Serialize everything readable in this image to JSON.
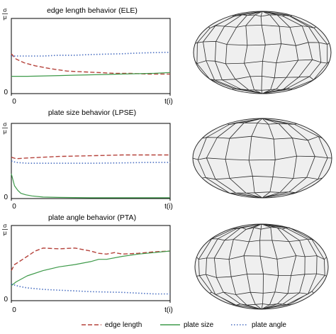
{
  "colors": {
    "edge_length": "#b5423b",
    "plate_size": "#3e9a4a",
    "plate_angle": "#4a6fc1",
    "axis": "#000000",
    "mesh_fill": "#efefef",
    "mesh_line": "#2a2a2a"
  },
  "legend": {
    "edge_length": "edge length",
    "plate_size": "plate size",
    "plate_angle": "plate angle"
  },
  "chart_data": [
    {
      "type": "line",
      "title": "edge length behavior (ELE)",
      "ylabel_num": "σ",
      "ylabel_den": "μ",
      "xlabel": "t(i)",
      "x_tick_start": "0",
      "y_tick_start": "0",
      "xlim": [
        0,
        1
      ],
      "ylim": [
        0,
        1
      ],
      "series": [
        {
          "name": "edge length",
          "x": [
            0,
            0.03,
            0.08,
            0.15,
            0.25,
            0.35,
            0.45,
            0.55,
            0.65,
            0.75,
            0.85,
            1.0
          ],
          "y": [
            0.53,
            0.46,
            0.41,
            0.37,
            0.33,
            0.3,
            0.29,
            0.28,
            0.27,
            0.27,
            0.26,
            0.26
          ]
        },
        {
          "name": "plate size",
          "x": [
            0,
            0.1,
            0.2,
            0.3,
            0.4,
            0.5,
            0.6,
            0.7,
            0.8,
            0.9,
            1.0
          ],
          "y": [
            0.23,
            0.23,
            0.235,
            0.24,
            0.245,
            0.25,
            0.255,
            0.26,
            0.265,
            0.27,
            0.28
          ]
        },
        {
          "name": "plate angle",
          "x": [
            0,
            0.1,
            0.2,
            0.3,
            0.4,
            0.5,
            0.6,
            0.7,
            0.8,
            0.9,
            1.0
          ],
          "y": [
            0.5,
            0.5,
            0.5,
            0.51,
            0.51,
            0.52,
            0.525,
            0.53,
            0.54,
            0.545,
            0.55
          ]
        }
      ]
    },
    {
      "type": "line",
      "title": "plate size behavior (LPSE)",
      "ylabel_num": "σ",
      "ylabel_den": "μ",
      "xlabel": "t(i)",
      "x_tick_start": "0",
      "y_tick_start": "0",
      "xlim": [
        0,
        1
      ],
      "ylim": [
        0,
        1
      ],
      "series": [
        {
          "name": "edge length",
          "x": [
            0,
            0.03,
            0.1,
            0.2,
            0.3,
            0.4,
            0.5,
            0.6,
            0.7,
            0.8,
            0.9,
            1.0
          ],
          "y": [
            0.55,
            0.53,
            0.54,
            0.55,
            0.56,
            0.565,
            0.57,
            0.575,
            0.58,
            0.58,
            0.58,
            0.58
          ]
        },
        {
          "name": "plate size",
          "x": [
            0,
            0.01,
            0.02,
            0.04,
            0.06,
            0.09,
            0.13,
            0.2,
            0.3,
            0.5,
            0.7,
            1.0
          ],
          "y": [
            0.33,
            0.25,
            0.17,
            0.11,
            0.07,
            0.05,
            0.035,
            0.02,
            0.015,
            0.01,
            0.01,
            0.01
          ]
        },
        {
          "name": "plate angle",
          "x": [
            0,
            0.03,
            0.1,
            0.3,
            0.5,
            0.7,
            0.85,
            1.0
          ],
          "y": [
            0.5,
            0.48,
            0.47,
            0.47,
            0.47,
            0.475,
            0.48,
            0.48
          ]
        }
      ]
    },
    {
      "type": "line",
      "title": "plate angle behavior (PTA)",
      "ylabel_num": "σ",
      "ylabel_den": "μ",
      "xlabel": "t(i)",
      "x_tick_start": "0",
      "y_tick_start": "0",
      "xlim": [
        0,
        1
      ],
      "ylim": [
        0,
        1
      ],
      "series": [
        {
          "name": "edge length",
          "x": [
            0,
            0.02,
            0.05,
            0.1,
            0.15,
            0.2,
            0.3,
            0.4,
            0.5,
            0.55,
            0.6,
            0.65,
            0.7,
            0.8,
            0.9,
            1.0
          ],
          "y": [
            0.4,
            0.48,
            0.52,
            0.59,
            0.66,
            0.7,
            0.69,
            0.7,
            0.66,
            0.63,
            0.62,
            0.64,
            0.62,
            0.63,
            0.65,
            0.66
          ]
        },
        {
          "name": "plate size",
          "x": [
            0,
            0.03,
            0.1,
            0.2,
            0.3,
            0.4,
            0.5,
            0.55,
            0.6,
            0.7,
            0.8,
            0.9,
            1.0
          ],
          "y": [
            0.2,
            0.25,
            0.33,
            0.4,
            0.45,
            0.48,
            0.52,
            0.55,
            0.55,
            0.59,
            0.62,
            0.64,
            0.66
          ]
        },
        {
          "name": "plate angle",
          "x": [
            0,
            0.05,
            0.1,
            0.2,
            0.3,
            0.4,
            0.5,
            0.6,
            0.7,
            0.8,
            0.9,
            1.0
          ],
          "y": [
            0.22,
            0.19,
            0.17,
            0.15,
            0.14,
            0.13,
            0.12,
            0.115,
            0.11,
            0.1,
            0.09,
            0.09
          ]
        }
      ]
    }
  ]
}
